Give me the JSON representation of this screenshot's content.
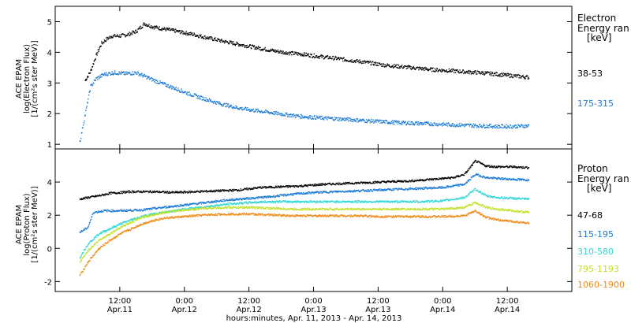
{
  "chart_data": [
    {
      "type": "scatter",
      "panel": "electron",
      "ylabel": [
        "ACE EPAM",
        "log(Electron Flux)",
        "[1/(cm²s ster MeV)]"
      ],
      "ylim": [
        0.85,
        5.5
      ],
      "yticks": [
        1,
        2,
        3,
        4,
        5
      ],
      "legend_title": [
        "Electron",
        "Energy ran",
        "[keV]"
      ],
      "x_hours_note": "",
      "series": [
        {
          "name": "38-53",
          "color": "#000000",
          "points": [
            [
              1.5,
              3.1
            ],
            [
              2.5,
              3.4
            ],
            [
              3.5,
              3.9
            ],
            [
              4.5,
              4.3
            ],
            [
              5.5,
              4.45
            ],
            [
              6.5,
              4.55
            ],
            [
              8,
              4.55
            ],
            [
              9.5,
              4.6
            ],
            [
              11,
              4.7
            ],
            [
              12.5,
              4.95
            ],
            [
              14,
              4.85
            ],
            [
              16,
              4.78
            ],
            [
              18,
              4.72
            ],
            [
              21,
              4.62
            ],
            [
              24,
              4.5
            ],
            [
              27,
              4.38
            ],
            [
              30,
              4.28
            ],
            [
              33,
              4.18
            ],
            [
              36,
              4.08
            ],
            [
              39,
              4.0
            ],
            [
              42,
              3.95
            ],
            [
              45,
              3.88
            ],
            [
              48,
              3.82
            ],
            [
              51,
              3.75
            ],
            [
              54,
              3.68
            ],
            [
              57,
              3.6
            ],
            [
              60,
              3.55
            ],
            [
              63,
              3.5
            ],
            [
              66,
              3.45
            ],
            [
              69,
              3.42
            ],
            [
              72,
              3.38
            ],
            [
              75,
              3.35
            ],
            [
              78,
              3.3
            ],
            [
              81,
              3.25
            ],
            [
              84,
              3.2
            ]
          ]
        },
        {
          "name": "175-315",
          "color": "#1a7ad6",
          "points": [
            [
              0.5,
              1.1
            ],
            [
              1.5,
              2.0
            ],
            [
              2.5,
              2.9
            ],
            [
              3.5,
              3.15
            ],
            [
              5,
              3.3
            ],
            [
              7,
              3.35
            ],
            [
              9,
              3.32
            ],
            [
              11,
              3.35
            ],
            [
              13,
              3.2
            ],
            [
              15,
              3.05
            ],
            [
              18,
              2.85
            ],
            [
              21,
              2.65
            ],
            [
              24,
              2.48
            ],
            [
              27,
              2.32
            ],
            [
              30,
              2.2
            ],
            [
              33,
              2.12
            ],
            [
              36,
              2.05
            ],
            [
              39,
              1.98
            ],
            [
              42,
              1.92
            ],
            [
              45,
              1.88
            ],
            [
              48,
              1.85
            ],
            [
              51,
              1.82
            ],
            [
              54,
              1.78
            ],
            [
              57,
              1.75
            ],
            [
              60,
              1.72
            ],
            [
              63,
              1.7
            ],
            [
              66,
              1.68
            ],
            [
              69,
              1.66
            ],
            [
              72,
              1.64
            ],
            [
              75,
              1.62
            ],
            [
              78,
              1.6
            ],
            [
              81,
              1.6
            ],
            [
              84,
              1.62
            ]
          ]
        }
      ]
    },
    {
      "type": "scatter",
      "panel": "proton",
      "ylabel": [
        "ACE EPAM",
        "log(Proton Flux)",
        "[1/(cm²s ster MeV)]"
      ],
      "ylim": [
        -2.6,
        6.0
      ],
      "yticks": [
        -2,
        0,
        2,
        4
      ],
      "legend_title": [
        "Proton",
        "Energy ran",
        "[keV]"
      ],
      "series": [
        {
          "name": "47-68",
          "color": "#000000",
          "points": [
            [
              0.5,
              3.0
            ],
            [
              2,
              3.1
            ],
            [
              4,
              3.2
            ],
            [
              6,
              3.35
            ],
            [
              10,
              3.45
            ],
            [
              14,
              3.45
            ],
            [
              18,
              3.4
            ],
            [
              22,
              3.45
            ],
            [
              26,
              3.5
            ],
            [
              30,
              3.55
            ],
            [
              34,
              3.7
            ],
            [
              38,
              3.75
            ],
            [
              42,
              3.8
            ],
            [
              46,
              3.9
            ],
            [
              50,
              3.95
            ],
            [
              54,
              4.0
            ],
            [
              58,
              4.05
            ],
            [
              62,
              4.1
            ],
            [
              66,
              4.2
            ],
            [
              70,
              4.3
            ],
            [
              72,
              4.5
            ],
            [
              74,
              5.3
            ],
            [
              76,
              5.0
            ],
            [
              78,
              4.95
            ],
            [
              81,
              4.95
            ],
            [
              84,
              4.9
            ]
          ]
        },
        {
          "name": "115-195",
          "color": "#1a7ad6",
          "points": [
            [
              0.5,
              1.0
            ],
            [
              2,
              1.3
            ],
            [
              3,
              2.2
            ],
            [
              5,
              2.3
            ],
            [
              8,
              2.3
            ],
            [
              12,
              2.35
            ],
            [
              16,
              2.5
            ],
            [
              20,
              2.65
            ],
            [
              24,
              2.8
            ],
            [
              28,
              2.95
            ],
            [
              32,
              3.05
            ],
            [
              36,
              3.15
            ],
            [
              40,
              3.3
            ],
            [
              44,
              3.4
            ],
            [
              48,
              3.45
            ],
            [
              52,
              3.5
            ],
            [
              56,
              3.55
            ],
            [
              60,
              3.6
            ],
            [
              64,
              3.65
            ],
            [
              68,
              3.7
            ],
            [
              72,
              3.9
            ],
            [
              74,
              4.5
            ],
            [
              76,
              4.3
            ],
            [
              78,
              4.25
            ],
            [
              81,
              4.2
            ],
            [
              84,
              4.15
            ]
          ]
        },
        {
          "name": "310-580",
          "color": "#2fd6d6",
          "points": [
            [
              0.5,
              -0.5
            ],
            [
              2,
              0.3
            ],
            [
              4,
              0.9
            ],
            [
              6,
              1.2
            ],
            [
              8,
              1.5
            ],
            [
              10,
              1.75
            ],
            [
              12,
              1.95
            ],
            [
              14,
              2.1
            ],
            [
              16,
              2.2
            ],
            [
              20,
              2.4
            ],
            [
              24,
              2.55
            ],
            [
              28,
              2.7
            ],
            [
              32,
              2.8
            ],
            [
              36,
              2.85
            ],
            [
              40,
              2.85
            ],
            [
              44,
              2.85
            ],
            [
              48,
              2.85
            ],
            [
              52,
              2.85
            ],
            [
              56,
              2.85
            ],
            [
              60,
              2.85
            ],
            [
              64,
              2.85
            ],
            [
              68,
              2.9
            ],
            [
              72,
              3.1
            ],
            [
              74,
              3.6
            ],
            [
              76,
              3.2
            ],
            [
              78,
              3.1
            ],
            [
              81,
              3.05
            ],
            [
              84,
              3.0
            ]
          ]
        },
        {
          "name": "795-1193",
          "color": "#c2e02a",
          "points": [
            [
              0.5,
              -0.8
            ],
            [
              2,
              -0.1
            ],
            [
              4,
              0.5
            ],
            [
              6,
              0.9
            ],
            [
              8,
              1.3
            ],
            [
              10,
              1.6
            ],
            [
              12,
              1.9
            ],
            [
              14,
              2.05
            ],
            [
              16,
              2.2
            ],
            [
              20,
              2.35
            ],
            [
              24,
              2.45
            ],
            [
              28,
              2.5
            ],
            [
              32,
              2.5
            ],
            [
              36,
              2.45
            ],
            [
              40,
              2.4
            ],
            [
              44,
              2.4
            ],
            [
              48,
              2.4
            ],
            [
              52,
              2.4
            ],
            [
              56,
              2.4
            ],
            [
              60,
              2.4
            ],
            [
              64,
              2.4
            ],
            [
              68,
              2.4
            ],
            [
              72,
              2.5
            ],
            [
              74,
              2.8
            ],
            [
              76,
              2.5
            ],
            [
              78,
              2.4
            ],
            [
              81,
              2.3
            ],
            [
              84,
              2.2
            ]
          ]
        },
        {
          "name": "1060-1900",
          "color": "#ef8a18",
          "points": [
            [
              0.5,
              -1.6
            ],
            [
              2,
              -0.8
            ],
            [
              4,
              0.0
            ],
            [
              6,
              0.5
            ],
            [
              8,
              0.9
            ],
            [
              10,
              1.2
            ],
            [
              12,
              1.5
            ],
            [
              14,
              1.7
            ],
            [
              16,
              1.85
            ],
            [
              20,
              1.95
            ],
            [
              24,
              2.05
            ],
            [
              28,
              2.1
            ],
            [
              32,
              2.1
            ],
            [
              36,
              2.05
            ],
            [
              40,
              2.0
            ],
            [
              44,
              2.0
            ],
            [
              48,
              2.0
            ],
            [
              52,
              2.0
            ],
            [
              56,
              1.95
            ],
            [
              60,
              1.95
            ],
            [
              64,
              1.95
            ],
            [
              68,
              1.95
            ],
            [
              72,
              2.0
            ],
            [
              74,
              2.3
            ],
            [
              76,
              1.9
            ],
            [
              78,
              1.75
            ],
            [
              81,
              1.65
            ],
            [
              84,
              1.55
            ]
          ]
        }
      ]
    }
  ],
  "xaxis": {
    "title": "hours:minutes, Apr. 11, 2013 - Apr. 14, 2013",
    "xlim_hours": [
      -4,
      92
    ],
    "ticks": [
      {
        "hour": 8,
        "time": "12:00",
        "day": "Apr.11"
      },
      {
        "hour": 20,
        "time": "0:00",
        "day": "Apr.12"
      },
      {
        "hour": 32,
        "time": "12:00",
        "day": "Apr.12"
      },
      {
        "hour": 44,
        "time": "0:00",
        "day": "Apr.13"
      },
      {
        "hour": 56,
        "time": "12:00",
        "day": "Apr.13"
      },
      {
        "hour": 68,
        "time": "0:00",
        "day": "Apr.14"
      },
      {
        "hour": 80,
        "time": "12:00",
        "day": "Apr.14"
      }
    ]
  }
}
